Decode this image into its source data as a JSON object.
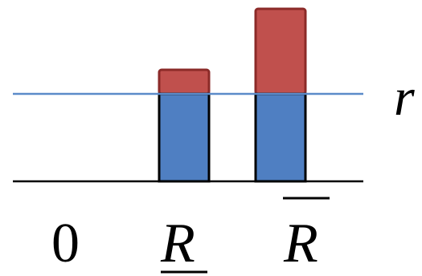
{
  "labels": {
    "zero": "0",
    "lower_r": "R",
    "upper_r": "R",
    "threshold": "r"
  },
  "bars": {
    "lower": {
      "threshold_part": "below-r",
      "excess_part": "above-r"
    },
    "upper": {
      "threshold_part": "below-r",
      "excess_part": "above-r"
    }
  },
  "colors": {
    "below_threshold": "#4f7fc2",
    "above_threshold": "#c0504d",
    "threshold_line": "#5b8bc9",
    "axis": "#000000",
    "outline": "#000000"
  }
}
